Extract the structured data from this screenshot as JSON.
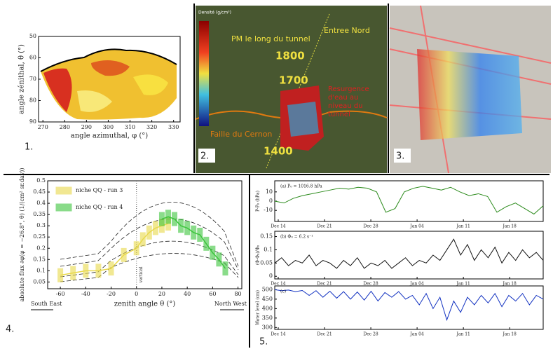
{
  "panels": [
    {
      "label": "1.",
      "chart": {
        "type": "contour",
        "xlabel": "angle azimuthal, φ (°)",
        "ylabel": "angle zénithal, θ (°)",
        "xlim": [
          268,
          333
        ],
        "ylim": [
          50,
          90
        ],
        "xticks": [
          270,
          280,
          290,
          300,
          310,
          320,
          330
        ],
        "yticks": [
          50,
          60,
          70,
          80,
          90
        ]
      }
    },
    {
      "label": "2.",
      "labels": [
        "Densité (g/cm³)",
        "PM le long du tunnel",
        "Entree Nord",
        "1800",
        "1700",
        "1400",
        "Resurgence d'eau au niveau du tunnel",
        "Faille du Cernon"
      ]
    },
    {
      "label": "3."
    },
    {
      "label": "4.",
      "chart": {
        "type": "line",
        "xlabel": "zenith angle θ (°)",
        "ylabel": "absolute flux ∂φ(φ = −26.8°, θ) (1/(cm² sr.day))",
        "left_label": "South East",
        "right_label": "North West",
        "annotation": "vertical",
        "xlim": [
          -70,
          83
        ],
        "ylim": [
          0.02,
          0.5
        ],
        "xticks": [
          -60,
          -40,
          -20,
          0,
          20,
          40,
          60,
          80
        ],
        "yticks": [
          0.05,
          0.1,
          0.15,
          0.2,
          0.25,
          0.3,
          0.35,
          0.4,
          0.45,
          0.5
        ],
        "series": [
          {
            "name": "niche QQ - run 3",
            "color": "#e8d84a",
            "x": [
              -60,
              -50,
              -40,
              -30,
              -20,
              -10,
              0,
              5,
              10,
              15,
              20,
              25
            ],
            "values": [
              0.08,
              0.09,
              0.1,
              0.1,
              0.11,
              0.17,
              0.2,
              0.24,
              0.27,
              0.29,
              0.3,
              0.31
            ]
          },
          {
            "name": "niche QQ - run 4",
            "color": "#3cc43c",
            "x": [
              20,
              25,
              30,
              35,
              40,
              45,
              50,
              55,
              60,
              65,
              70
            ],
            "values": [
              0.33,
              0.34,
              0.33,
              0.3,
              0.29,
              0.27,
              0.26,
              0.22,
              0.18,
              0.15,
              0.11
            ]
          }
        ]
      }
    },
    {
      "label": "5.",
      "categories": [
        "Dec 14",
        "Dec 21",
        "Dec 28",
        "Jan 04",
        "Jan 11",
        "Jan 18"
      ],
      "charts": [
        {
          "type": "line",
          "annotation": "(a)  P₀ = 1016.8 hPa",
          "ylabel": "P-P₀ (hPa)",
          "ylim": [
            -22,
            22
          ],
          "yticks": [
            -10,
            0,
            10
          ],
          "color": "#2a8a1a",
          "values": [
            0,
            -2,
            3,
            6,
            8,
            10,
            12,
            14,
            13,
            15,
            14,
            10,
            -12,
            -8,
            10,
            14,
            16,
            14,
            12,
            15,
            10,
            6,
            8,
            5,
            -12,
            -6,
            -2,
            -8,
            -14,
            -5
          ]
        },
        {
          "type": "line",
          "annotation": "(b)  Φ₀ = 6.2 s⁻¹",
          "ylabel": "(Φ-Φ₀)/Φ₀",
          "ylim": [
            -0.01,
            0.17
          ],
          "yticks": [
            0,
            0.05,
            0.1,
            0.15
          ],
          "color": "#111111",
          "values": [
            0.05,
            0.07,
            0.04,
            0.06,
            0.05,
            0.08,
            0.04,
            0.06,
            0.05,
            0.03,
            0.06,
            0.04,
            0.07,
            0.03,
            0.05,
            0.04,
            0.06,
            0.03,
            0.05,
            0.07,
            0.04,
            0.06,
            0.05,
            0.08,
            0.06,
            0.1,
            0.14,
            0.08,
            0.12,
            0.06,
            0.1,
            0.07,
            0.11,
            0.05,
            0.09,
            0.06,
            0.1,
            0.07,
            0.09,
            0.06
          ]
        },
        {
          "type": "line",
          "annotation": "(c)",
          "ylabel": "Water level (cm)",
          "ylim": [
            290,
            520
          ],
          "yticks": [
            300,
            350,
            400,
            450,
            500
          ],
          "color": "#1030c0",
          "values": [
            500,
            495,
            498,
            490,
            496,
            470,
            495,
            460,
            492,
            455,
            490,
            450,
            488,
            445,
            492,
            440,
            485,
            460,
            490,
            450,
            470,
            420,
            480,
            400,
            460,
            340,
            440,
            380,
            460,
            420,
            470,
            430,
            480,
            410,
            470,
            440,
            480,
            420,
            470,
            450
          ]
        }
      ]
    }
  ]
}
